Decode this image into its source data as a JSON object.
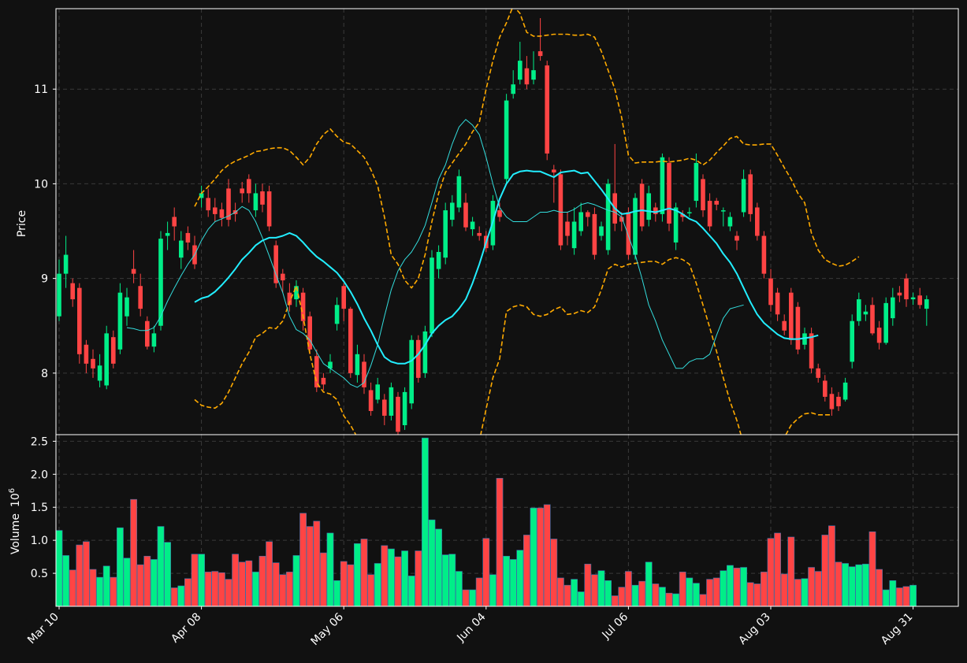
{
  "chart_data": {
    "type": "candlestick",
    "colors": {
      "background": "#111111",
      "up": "#00ee88",
      "down": "#ff4444",
      "ma_fast": "#33dddd",
      "ma_slow": "#22eeff",
      "bands": "#ffaa00",
      "grid": "#3a3a3a",
      "text": "#ffffff"
    },
    "price_panel": {
      "ylabel": "Price",
      "ylim": [
        7.35,
        11.85
      ],
      "yticks": [
        8,
        9,
        10,
        11
      ],
      "ytick_labels": [
        "8",
        "9",
        "10",
        "11"
      ]
    },
    "volume_panel": {
      "ylabel": "Volume",
      "ylabel_exponent": "10",
      "ylabel_power": "6",
      "ylim": [
        0,
        2.6
      ],
      "yticks": [
        0.5,
        1.0,
        1.5,
        2.0,
        2.5
      ],
      "ytick_labels": [
        "0.5",
        "1.0",
        "1.5",
        "2.0",
        "2.5"
      ]
    },
    "x_ticks": [
      {
        "index": 0,
        "label": "Mar 10"
      },
      {
        "index": 21,
        "label": "Apr 08"
      },
      {
        "index": 42,
        "label": "May 06"
      },
      {
        "index": 63,
        "label": "Jun 04"
      },
      {
        "index": 84,
        "label": "Jul 06"
      },
      {
        "index": 105,
        "label": "Aug 03"
      },
      {
        "index": 126,
        "label": "Aug 31"
      }
    ],
    "candles": [
      [
        8.6,
        9.05,
        9.2,
        8.55
      ],
      [
        9.05,
        9.25,
        9.45,
        8.9
      ],
      [
        8.95,
        8.78,
        9.0,
        8.7
      ],
      [
        8.9,
        8.2,
        8.95,
        8.1
      ],
      [
        8.3,
        8.1,
        8.35,
        8.0
      ],
      [
        8.15,
        8.05,
        8.25,
        7.95
      ],
      [
        7.92,
        8.08,
        8.2,
        7.85
      ],
      [
        7.87,
        8.42,
        8.5,
        7.83
      ],
      [
        8.38,
        8.1,
        8.45,
        8.05
      ],
      [
        8.25,
        8.85,
        8.95,
        8.2
      ],
      [
        8.6,
        8.8,
        8.9,
        8.5
      ],
      [
        9.1,
        9.05,
        9.3,
        8.95
      ],
      [
        8.92,
        8.68,
        9.05,
        8.6
      ],
      [
        8.55,
        8.28,
        8.6,
        8.25
      ],
      [
        8.28,
        8.42,
        8.5,
        8.22
      ],
      [
        8.5,
        9.42,
        9.5,
        8.45
      ],
      [
        9.45,
        9.48,
        9.6,
        9.3
      ],
      [
        9.65,
        9.55,
        9.75,
        9.4
      ],
      [
        9.22,
        9.4,
        9.5,
        9.1
      ],
      [
        9.48,
        9.38,
        9.55,
        9.3
      ],
      [
        9.35,
        9.15,
        9.45,
        9.1
      ],
      [
        9.85,
        9.9,
        9.98,
        9.75
      ],
      [
        9.85,
        9.72,
        9.95,
        9.65
      ],
      [
        9.75,
        9.68,
        9.85,
        9.6
      ],
      [
        9.73,
        9.64,
        9.8,
        9.55
      ],
      [
        9.95,
        9.62,
        10.05,
        9.55
      ],
      [
        9.72,
        9.68,
        9.8,
        9.6
      ],
      [
        9.95,
        9.9,
        10.02,
        9.8
      ],
      [
        10.05,
        9.9,
        10.1,
        9.8
      ],
      [
        9.72,
        9.9,
        10.0,
        9.65
      ],
      [
        9.92,
        9.78,
        10.0,
        9.7
      ],
      [
        9.92,
        9.55,
        9.98,
        9.5
      ],
      [
        9.35,
        8.95,
        9.4,
        8.9
      ],
      [
        9.05,
        8.98,
        9.1,
        8.85
      ],
      [
        8.85,
        8.72,
        8.95,
        8.65
      ],
      [
        8.78,
        8.92,
        8.98,
        8.7
      ],
      [
        8.85,
        8.55,
        8.9,
        8.45
      ],
      [
        8.6,
        8.25,
        8.65,
        8.2
      ],
      [
        8.18,
        7.85,
        8.25,
        7.8
      ],
      [
        7.95,
        7.88,
        8.0,
        7.82
      ],
      [
        8.05,
        8.12,
        8.2,
        8.0
      ],
      [
        8.52,
        8.72,
        8.8,
        8.45
      ],
      [
        8.92,
        8.68,
        8.95,
        8.55
      ],
      [
        8.68,
        8.0,
        8.7,
        7.95
      ],
      [
        7.98,
        8.2,
        8.3,
        7.9
      ],
      [
        8.12,
        7.85,
        8.2,
        7.78
      ],
      [
        7.82,
        7.6,
        7.9,
        7.55
      ],
      [
        7.72,
        7.88,
        7.95,
        7.68
      ],
      [
        7.72,
        7.55,
        7.78,
        7.45
      ],
      [
        7.55,
        7.85,
        7.9,
        7.5
      ],
      [
        7.75,
        7.38,
        7.8,
        7.3
      ],
      [
        7.45,
        7.8,
        7.85,
        7.4
      ],
      [
        7.68,
        8.35,
        8.4,
        7.62
      ],
      [
        8.35,
        7.95,
        8.4,
        7.9
      ],
      [
        8.0,
        8.44,
        8.5,
        7.95
      ],
      [
        8.42,
        9.22,
        9.3,
        8.38
      ],
      [
        9.1,
        9.28,
        9.35,
        9.0
      ],
      [
        9.22,
        9.72,
        9.8,
        9.15
      ],
      [
        9.62,
        9.8,
        9.88,
        9.55
      ],
      [
        9.75,
        10.08,
        10.15,
        9.7
      ],
      [
        9.8,
        9.54,
        9.9,
        9.5
      ],
      [
        9.52,
        9.6,
        9.65,
        9.45
      ],
      [
        9.48,
        9.45,
        9.55,
        9.4
      ],
      [
        9.45,
        9.32,
        9.5,
        9.28
      ],
      [
        9.35,
        9.82,
        9.88,
        9.3
      ],
      [
        9.72,
        9.65,
        9.8,
        9.6
      ],
      [
        10.05,
        10.88,
        10.95,
        10.0
      ],
      [
        10.95,
        11.05,
        11.2,
        10.9
      ],
      [
        11.1,
        11.3,
        11.5,
        11.05
      ],
      [
        11.22,
        11.05,
        11.35,
        11.0
      ],
      [
        11.1,
        11.2,
        11.4,
        11.05
      ],
      [
        11.4,
        11.35,
        11.75,
        11.3
      ],
      [
        11.25,
        10.32,
        11.3,
        10.25
      ],
      [
        10.15,
        10.12,
        10.2,
        9.8
      ],
      [
        10.1,
        9.35,
        10.15,
        9.3
      ],
      [
        9.6,
        9.45,
        9.7,
        9.35
      ],
      [
        9.32,
        9.6,
        9.75,
        9.25
      ],
      [
        9.5,
        9.7,
        9.8,
        9.45
      ],
      [
        9.7,
        9.65,
        9.72,
        9.55
      ],
      [
        9.68,
        9.25,
        9.75,
        9.2
      ],
      [
        9.45,
        9.55,
        9.6,
        9.4
      ],
      [
        9.3,
        10.0,
        10.05,
        9.25
      ],
      [
        9.9,
        9.58,
        10.42,
        9.5
      ],
      [
        9.65,
        9.6,
        9.7,
        9.5
      ],
      [
        9.7,
        9.25,
        9.75,
        9.2
      ],
      [
        9.25,
        9.85,
        9.9,
        9.2
      ],
      [
        10.0,
        9.55,
        10.05,
        9.5
      ],
      [
        9.62,
        9.9,
        9.98,
        9.55
      ],
      [
        9.75,
        9.68,
        9.8,
        9.6
      ],
      [
        9.68,
        10.28,
        10.32,
        9.6
      ],
      [
        10.22,
        9.58,
        10.28,
        9.5
      ],
      [
        9.38,
        9.75,
        9.8,
        9.3
      ],
      [
        9.68,
        9.65,
        9.72,
        9.6
      ],
      [
        9.7,
        9.7,
        9.75,
        9.65
      ],
      [
        9.82,
        10.22,
        10.32,
        9.75
      ],
      [
        10.05,
        9.72,
        10.1,
        9.65
      ],
      [
        9.82,
        9.55,
        9.9,
        9.5
      ],
      [
        9.82,
        9.78,
        9.85,
        9.72
      ],
      [
        9.72,
        9.72,
        9.75,
        9.55
      ],
      [
        9.55,
        9.65,
        9.7,
        9.5
      ],
      [
        9.45,
        9.4,
        9.5,
        9.3
      ],
      [
        9.7,
        10.05,
        10.15,
        9.65
      ],
      [
        10.1,
        9.68,
        10.15,
        9.6
      ],
      [
        9.75,
        9.45,
        9.8,
        9.4
      ],
      [
        9.45,
        9.05,
        9.5,
        9.0
      ],
      [
        9.0,
        8.72,
        9.1,
        8.65
      ],
      [
        8.85,
        8.62,
        8.9,
        8.55
      ],
      [
        8.55,
        8.45,
        8.62,
        8.4
      ],
      [
        8.85,
        8.35,
        8.9,
        8.3
      ],
      [
        8.7,
        8.25,
        8.75,
        8.2
      ],
      [
        8.3,
        8.42,
        8.48,
        8.25
      ],
      [
        8.42,
        8.05,
        8.48,
        8.0
      ],
      [
        8.05,
        7.95,
        8.1,
        7.9
      ],
      [
        7.92,
        7.75,
        7.98,
        7.7
      ],
      [
        7.78,
        7.62,
        7.85,
        7.55
      ],
      [
        7.75,
        7.65,
        7.8,
        7.6
      ],
      [
        7.72,
        7.9,
        7.95,
        7.7
      ],
      [
        8.12,
        8.55,
        8.62,
        8.05
      ],
      [
        8.55,
        8.78,
        8.85,
        8.5
      ],
      [
        8.62,
        8.65,
        8.72,
        8.55
      ],
      [
        8.72,
        8.42,
        8.8,
        8.4
      ],
      [
        8.48,
        8.32,
        8.55,
        8.25
      ],
      [
        8.32,
        8.74,
        8.8,
        8.3
      ],
      [
        8.58,
        8.8,
        8.9,
        8.5
      ],
      [
        8.85,
        8.82,
        8.92,
        8.75
      ],
      [
        9.0,
        8.78,
        9.05,
        8.7
      ],
      [
        8.78,
        8.8,
        8.85,
        8.72
      ],
      [
        8.82,
        8.72,
        8.9,
        8.68
      ],
      [
        8.68,
        8.78,
        8.82,
        8.5
      ]
    ],
    "volume_millions": [
      1.15,
      0.77,
      0.55,
      0.93,
      0.98,
      0.56,
      0.44,
      0.61,
      0.44,
      1.19,
      0.73,
      1.62,
      0.63,
      0.76,
      0.71,
      1.21,
      0.97,
      0.28,
      0.31,
      0.42,
      0.79,
      0.79,
      0.52,
      0.53,
      0.51,
      0.41,
      0.79,
      0.67,
      0.69,
      0.52,
      0.76,
      0.98,
      0.66,
      0.48,
      0.52,
      0.77,
      1.41,
      1.21,
      1.29,
      0.81,
      1.11,
      0.39,
      0.68,
      0.63,
      0.95,
      1.02,
      0.48,
      0.65,
      0.92,
      0.87,
      0.75,
      0.84,
      0.46,
      0.84,
      2.55,
      1.31,
      1.17,
      0.78,
      0.79,
      0.53,
      0.25,
      0.25,
      0.43,
      1.03,
      0.48,
      1.94,
      0.76,
      0.71,
      0.85,
      1.08,
      1.49,
      1.49,
      1.54,
      1.02,
      0.43,
      0.32,
      0.41,
      0.22,
      0.64,
      0.48,
      0.54,
      0.39,
      0.16,
      0.29,
      0.53,
      0.32,
      0.38,
      0.67,
      0.34,
      0.29,
      0.2,
      0.19,
      0.52,
      0.43,
      0.35,
      0.18,
      0.41,
      0.43,
      0.54,
      0.62,
      0.58,
      0.59,
      0.36,
      0.34,
      0.52,
      1.03,
      1.11,
      0.49,
      1.05,
      0.41,
      0.42,
      0.59,
      0.53,
      1.08,
      1.22,
      0.67,
      0.65,
      0.6,
      0.63,
      0.64,
      1.13,
      0.56,
      0.25,
      0.39,
      0.28,
      0.3,
      0.32
    ],
    "ma_fast_start_index": 10,
    "ma_fast": [
      8.48,
      8.47,
      8.45,
      8.45,
      8.48,
      8.6,
      8.76,
      8.9,
      9.03,
      9.15,
      9.25,
      9.4,
      9.52,
      9.6,
      9.63,
      9.66,
      9.7,
      9.76,
      9.72,
      9.6,
      9.43,
      9.24,
      9.04,
      8.85,
      8.6,
      8.46,
      8.42,
      8.35,
      8.22,
      8.1,
      8.05,
      8.0,
      7.95,
      7.88,
      7.85,
      7.9,
      8.08,
      8.3,
      8.6,
      8.88,
      9.08,
      9.2,
      9.28,
      9.4,
      9.56,
      9.8,
      10.05,
      10.2,
      10.42,
      10.6,
      10.68,
      10.62,
      10.52,
      10.28,
      10.0,
      9.75,
      9.65,
      9.6,
      9.6,
      9.6,
      9.65,
      9.7,
      9.7,
      9.72,
      9.7,
      9.7,
      9.73,
      9.78,
      9.8,
      9.78,
      9.75,
      9.72,
      9.7,
      9.65,
      9.45,
      9.25,
      9.0,
      8.72,
      8.55,
      8.35,
      8.2,
      8.05,
      8.05,
      8.12,
      8.15,
      8.15,
      8.2,
      8.4,
      8.58,
      8.68,
      8.7,
      8.72
    ],
    "ma_slow_start_index": 20,
    "ma_slow": [
      8.75,
      8.79,
      8.81,
      8.86,
      8.93,
      9.01,
      9.1,
      9.2,
      9.27,
      9.35,
      9.4,
      9.43,
      9.43,
      9.45,
      9.48,
      9.45,
      9.38,
      9.3,
      9.23,
      9.18,
      9.12,
      9.06,
      8.97,
      8.86,
      8.73,
      8.58,
      8.45,
      8.3,
      8.17,
      8.12,
      8.1,
      8.1,
      8.13,
      8.2,
      8.3,
      8.42,
      8.5,
      8.56,
      8.6,
      8.68,
      8.78,
      8.95,
      9.15,
      9.38,
      9.6,
      9.84,
      10.0,
      10.1,
      10.13,
      10.14,
      10.13,
      10.13,
      10.1,
      10.07,
      10.12,
      10.13,
      10.14,
      10.11,
      10.12,
      10.03,
      9.94,
      9.84,
      9.74,
      9.68,
      9.69,
      9.71,
      9.72,
      9.71,
      9.7,
      9.72,
      9.74,
      9.72,
      9.68,
      9.63,
      9.6,
      9.53,
      9.45,
      9.37,
      9.26,
      9.17,
      9.05,
      8.9,
      8.75,
      8.62,
      8.53,
      8.47,
      8.41,
      8.37,
      8.36,
      8.36,
      8.37,
      8.38,
      8.4
    ],
    "band_start_index": 20,
    "band_upper": [
      9.76,
      9.9,
      9.97,
      10.05,
      10.14,
      10.2,
      10.24,
      10.27,
      10.3,
      10.34,
      10.35,
      10.37,
      10.38,
      10.38,
      10.35,
      10.28,
      10.2,
      10.28,
      10.42,
      10.52,
      10.58,
      10.5,
      10.44,
      10.42,
      10.35,
      10.28,
      10.15,
      9.98,
      9.65,
      9.25,
      9.15,
      8.98,
      8.9,
      9.0,
      9.25,
      9.6,
      9.9,
      10.12,
      10.22,
      10.32,
      10.42,
      10.55,
      10.65,
      11.0,
      11.3,
      11.55,
      11.7,
      11.88,
      11.8,
      11.6,
      11.56,
      11.56,
      11.57,
      11.58,
      11.58,
      11.58,
      11.57,
      11.57,
      11.58,
      11.55,
      11.4,
      11.2,
      11.0,
      10.7,
      10.3,
      10.22,
      10.23,
      10.23,
      10.23,
      10.24,
      10.23,
      10.24,
      10.25,
      10.27,
      10.25,
      10.2,
      10.25,
      10.33,
      10.4,
      10.48,
      10.5,
      10.42,
      10.41,
      10.41,
      10.42,
      10.42,
      10.3,
      10.17,
      10.05,
      9.9,
      9.8,
      9.48,
      9.3,
      9.2,
      9.16,
      9.13,
      9.14,
      9.18,
      9.23
    ],
    "band_lower": [
      7.72,
      7.66,
      7.64,
      7.63,
      7.68,
      7.8,
      7.95,
      8.1,
      8.22,
      8.38,
      8.42,
      8.48,
      8.47,
      8.55,
      8.75,
      8.92,
      8.6,
      8.2,
      7.9,
      7.8,
      7.78,
      7.72,
      7.55,
      7.45,
      7.32,
      7.15,
      6.95,
      6.82,
      6.72,
      6.8,
      6.9,
      6.8,
      6.75,
      6.6,
      6.55,
      6.5,
      6.5,
      6.55,
      6.68,
      6.82,
      6.95,
      7.1,
      7.28,
      7.62,
      7.95,
      8.15,
      8.65,
      8.7,
      8.72,
      8.7,
      8.62,
      8.6,
      8.62,
      8.67,
      8.7,
      8.62,
      8.63,
      8.66,
      8.64,
      8.7,
      8.88,
      9.1,
      9.15,
      9.12,
      9.15,
      9.16,
      9.17,
      9.18,
      9.18,
      9.15,
      9.2,
      9.22,
      9.2,
      9.15,
      8.95,
      8.72,
      8.48,
      8.23,
      7.95,
      7.7,
      7.5,
      7.25,
      7.2,
      7.03,
      6.97,
      7.0,
      7.18,
      7.32,
      7.45,
      7.52,
      7.57,
      7.58,
      7.56,
      7.56,
      7.56
    ]
  }
}
